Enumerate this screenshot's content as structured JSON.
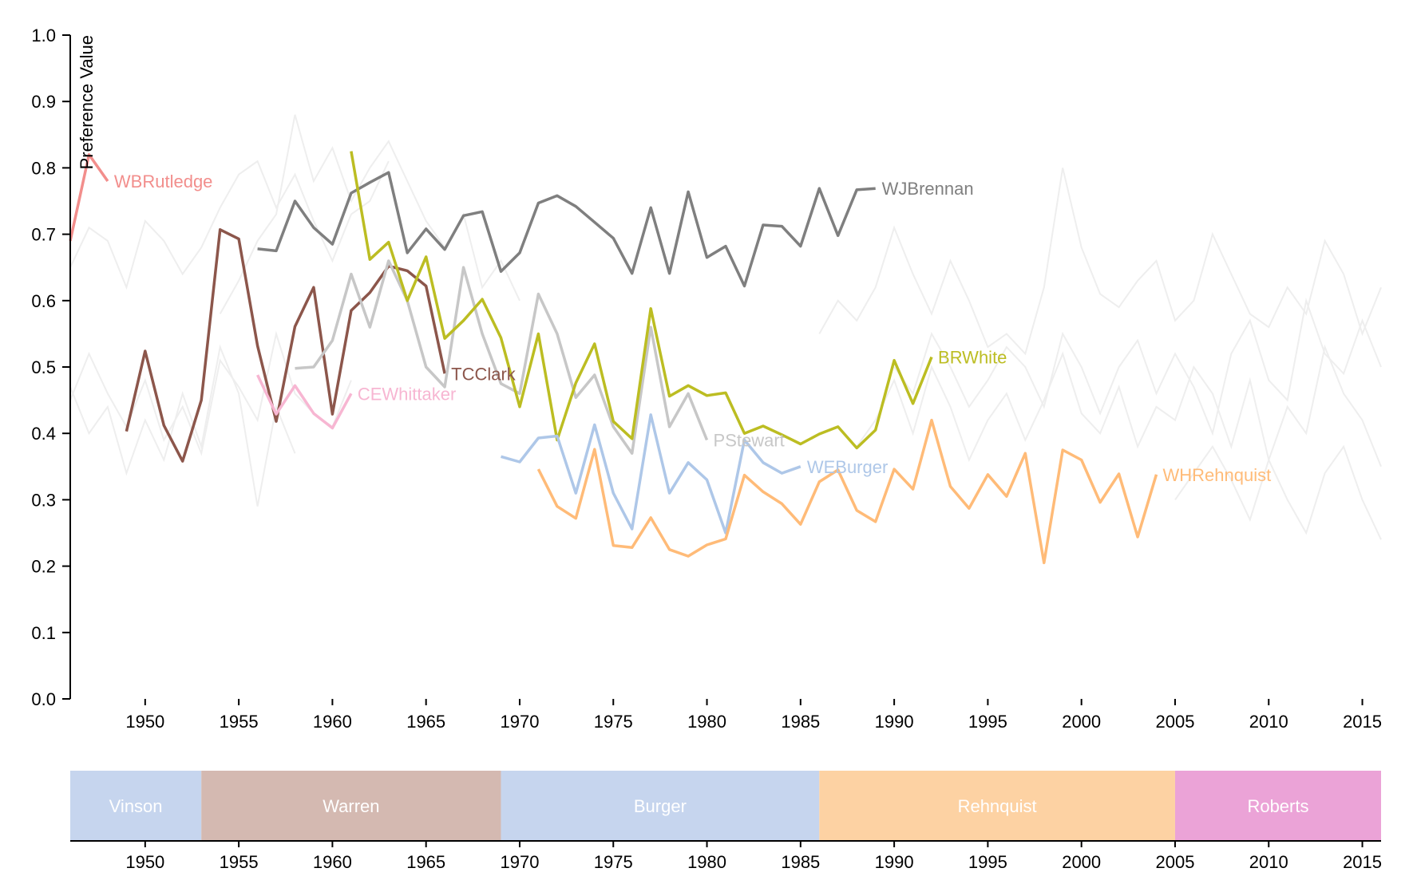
{
  "chart_data": {
    "type": "line",
    "title": "",
    "xlabel": "",
    "ylabel": "Preference Value",
    "xlim": [
      1946,
      2016
    ],
    "ylim": [
      0,
      1
    ],
    "y_ticks": [
      "0.0",
      "0.1",
      "0.2",
      "0.3",
      "0.4",
      "0.5",
      "0.6",
      "0.7",
      "0.8",
      "0.9",
      "1.0"
    ],
    "x_ticks": [
      "1950",
      "1955",
      "1960",
      "1965",
      "1970",
      "1975",
      "1980",
      "1985",
      "1990",
      "1995",
      "2000",
      "2005",
      "2010",
      "2015"
    ],
    "background_series_color": "#eeeeee",
    "series": [
      {
        "name": "WBRutledge",
        "color": "#f28e8c",
        "x": [
          1946,
          1947,
          1948
        ],
        "y": [
          0.69,
          0.82,
          0.78
        ]
      },
      {
        "name": "WJBrennan",
        "color": "#7f7f7f",
        "x": [
          1956,
          1957,
          1958,
          1959,
          1960,
          1961,
          1962,
          1963,
          1964,
          1965,
          1966,
          1967,
          1968,
          1969,
          1970,
          1971,
          1972,
          1973,
          1974,
          1975,
          1976,
          1977,
          1978,
          1979,
          1980,
          1981,
          1982,
          1983,
          1984,
          1985,
          1986,
          1987,
          1988,
          1989
        ],
        "y": [
          0.678,
          0.675,
          0.75,
          0.71,
          0.685,
          0.762,
          0.778,
          0.793,
          0.672,
          0.708,
          0.677,
          0.728,
          0.734,
          0.644,
          0.672,
          0.747,
          0.758,
          0.742,
          0.718,
          0.694,
          0.641,
          0.74,
          0.641,
          0.764,
          0.665,
          0.682,
          0.622,
          0.714,
          0.712,
          0.682,
          0.769,
          0.698,
          0.767,
          0.769
        ]
      },
      {
        "name": "TCClark",
        "color": "#8c564b",
        "x": [
          1949,
          1950,
          1951,
          1952,
          1953,
          1954,
          1955,
          1956,
          1957,
          1958,
          1959,
          1960,
          1961,
          1962,
          1963,
          1964,
          1965,
          1966
        ],
        "y": [
          0.403,
          0.524,
          0.412,
          0.358,
          0.45,
          0.707,
          0.693,
          0.532,
          0.418,
          0.561,
          0.62,
          0.429,
          0.585,
          0.612,
          0.652,
          0.645,
          0.622,
          0.49
        ]
      },
      {
        "name": "CEWhittaker",
        "color": "#f7b6d2",
        "x": [
          1956,
          1957,
          1958,
          1959,
          1960,
          1961
        ],
        "y": [
          0.488,
          0.429,
          0.472,
          0.43,
          0.408,
          0.46
        ]
      },
      {
        "name": "PStewart",
        "color": "#c7c7c7",
        "x": [
          1958,
          1959,
          1960,
          1961,
          1962,
          1963,
          1964,
          1965,
          1966,
          1967,
          1968,
          1969,
          1970,
          1971,
          1972,
          1973,
          1974,
          1975,
          1976,
          1977,
          1978,
          1979,
          1980
        ],
        "y": [
          0.498,
          0.5,
          0.54,
          0.64,
          0.56,
          0.66,
          0.6,
          0.5,
          0.47,
          0.65,
          0.55,
          0.475,
          0.46,
          0.61,
          0.55,
          0.454,
          0.488,
          0.41,
          0.37,
          0.56,
          0.41,
          0.46,
          0.39
        ]
      },
      {
        "name": "BRWhite",
        "color": "#bcbd22",
        "x": [
          1961,
          1962,
          1963,
          1964,
          1965,
          1966,
          1967,
          1968,
          1969,
          1970,
          1971,
          1972,
          1973,
          1974,
          1975,
          1976,
          1977,
          1978,
          1979,
          1980,
          1981,
          1982,
          1983,
          1984,
          1985,
          1986,
          1987,
          1988,
          1989,
          1990,
          1991,
          1992
        ],
        "y": [
          0.825,
          0.662,
          0.688,
          0.6,
          0.666,
          0.543,
          0.57,
          0.602,
          0.544,
          0.44,
          0.55,
          0.39,
          0.476,
          0.535,
          0.418,
          0.392,
          0.588,
          0.456,
          0.472,
          0.457,
          0.461,
          0.4,
          0.411,
          0.398,
          0.384,
          0.399,
          0.41,
          0.378,
          0.405,
          0.51,
          0.445,
          0.515
        ]
      },
      {
        "name": "WEBurger",
        "color": "#aec7e8",
        "x": [
          1969,
          1970,
          1971,
          1972,
          1973,
          1974,
          1975,
          1976,
          1977,
          1978,
          1979,
          1980,
          1981,
          1982,
          1983,
          1984,
          1985
        ],
        "y": [
          0.365,
          0.357,
          0.393,
          0.396,
          0.31,
          0.413,
          0.31,
          0.256,
          0.428,
          0.31,
          0.356,
          0.33,
          0.25,
          0.39,
          0.356,
          0.34,
          0.35
        ]
      },
      {
        "name": "WHRehnquist",
        "color": "#ffbb78",
        "x": [
          1971,
          1972,
          1973,
          1974,
          1975,
          1976,
          1977,
          1978,
          1979,
          1980,
          1981,
          1982,
          1983,
          1984,
          1985,
          1986,
          1987,
          1988,
          1989,
          1990,
          1991,
          1992,
          1993,
          1994,
          1995,
          1996,
          1997,
          1998,
          1999,
          2000,
          2001,
          2002,
          2003,
          2004
        ],
        "y": [
          0.346,
          0.29,
          0.272,
          0.376,
          0.231,
          0.228,
          0.273,
          0.225,
          0.215,
          0.232,
          0.241,
          0.337,
          0.312,
          0.294,
          0.263,
          0.327,
          0.345,
          0.284,
          0.267,
          0.346,
          0.316,
          0.42,
          0.32,
          0.287,
          0.338,
          0.305,
          0.37,
          0.205,
          0.375,
          0.36,
          0.296,
          0.339,
          0.244,
          0.338
        ]
      }
    ],
    "background_series": [
      {
        "x": [
          1946,
          1947,
          1948,
          1949,
          1950,
          1951,
          1952,
          1953,
          1954,
          1955,
          1956,
          1957,
          1958,
          1959,
          1960,
          1961,
          1962,
          1963
        ],
        "y": [
          0.65,
          0.71,
          0.69,
          0.62,
          0.72,
          0.69,
          0.64,
          0.68,
          0.74,
          0.79,
          0.81,
          0.74,
          0.79,
          0.72,
          0.66,
          0.73,
          0.75,
          0.81
        ]
      },
      {
        "x": [
          1946,
          1947,
          1948,
          1949,
          1950,
          1951,
          1952,
          1953,
          1954,
          1955,
          1956,
          1957,
          1958,
          1959,
          1960,
          1961
        ],
        "y": [
          0.45,
          0.52,
          0.46,
          0.41,
          0.48,
          0.39,
          0.44,
          0.37,
          0.51,
          0.47,
          0.42,
          0.55,
          0.46,
          0.43,
          0.41,
          0.48
        ]
      },
      {
        "x": [
          1946,
          1947,
          1948,
          1949,
          1950,
          1951,
          1952,
          1953,
          1954,
          1955,
          1956,
          1957,
          1958
        ],
        "y": [
          0.47,
          0.4,
          0.44,
          0.34,
          0.42,
          0.36,
          0.46,
          0.38,
          0.53,
          0.46,
          0.29,
          0.44,
          0.37
        ]
      },
      {
        "x": [
          1954,
          1955,
          1956,
          1957,
          1958,
          1959,
          1960,
          1961,
          1962,
          1963,
          1964,
          1965,
          1966,
          1967,
          1968,
          1969,
          1970
        ],
        "y": [
          0.58,
          0.63,
          0.69,
          0.73,
          0.88,
          0.78,
          0.83,
          0.75,
          0.8,
          0.84,
          0.78,
          0.72,
          0.68,
          0.73,
          0.62,
          0.66,
          0.6
        ]
      },
      {
        "x": [
          1986,
          1987,
          1988,
          1989,
          1990,
          1991,
          1992,
          1993,
          1994,
          1995,
          1996,
          1997,
          1998,
          1999,
          2000,
          2001,
          2002,
          2003,
          2004,
          2005,
          2006,
          2007,
          2008,
          2009,
          2010,
          2011,
          2012,
          2013,
          2014,
          2015,
          2016
        ],
        "y": [
          0.55,
          0.6,
          0.57,
          0.62,
          0.71,
          0.64,
          0.58,
          0.66,
          0.6,
          0.53,
          0.55,
          0.52,
          0.62,
          0.8,
          0.68,
          0.61,
          0.59,
          0.63,
          0.66,
          0.57,
          0.6,
          0.7,
          0.64,
          0.58,
          0.56,
          0.62,
          0.58,
          0.69,
          0.64,
          0.55,
          0.62
        ]
      },
      {
        "x": [
          1988,
          1989,
          1990,
          1991,
          1992,
          1993,
          1994,
          1995,
          1996,
          1997,
          1998,
          1999,
          2000,
          2001,
          2002,
          2003,
          2004,
          2005,
          2006,
          2007,
          2008,
          2009,
          2010,
          2011,
          2012,
          2013,
          2014,
          2015,
          2016
        ],
        "y": [
          0.38,
          0.42,
          0.48,
          0.4,
          0.5,
          0.44,
          0.36,
          0.42,
          0.46,
          0.39,
          0.45,
          0.52,
          0.43,
          0.4,
          0.47,
          0.38,
          0.44,
          0.42,
          0.5,
          0.46,
          0.38,
          0.48,
          0.36,
          0.44,
          0.4,
          0.53,
          0.46,
          0.42,
          0.35
        ]
      },
      {
        "x": [
          1990,
          1991,
          1992,
          1993,
          1994,
          1995,
          1996,
          1997,
          1998,
          1999,
          2000,
          2001,
          2002,
          2003,
          2004,
          2005,
          2006,
          2007,
          2008,
          2009,
          2010,
          2011,
          2012,
          2013,
          2014,
          2015,
          2016
        ],
        "y": [
          0.5,
          0.46,
          0.55,
          0.5,
          0.44,
          0.48,
          0.53,
          0.5,
          0.44,
          0.55,
          0.5,
          0.43,
          0.5,
          0.54,
          0.46,
          0.52,
          0.47,
          0.4,
          0.52,
          0.57,
          0.48,
          0.45,
          0.6,
          0.52,
          0.49,
          0.57,
          0.5
        ]
      },
      {
        "x": [
          2005,
          2006,
          2007,
          2008,
          2009,
          2010,
          2011,
          2012,
          2013,
          2014,
          2015,
          2016
        ],
        "y": [
          0.3,
          0.34,
          0.38,
          0.33,
          0.27,
          0.36,
          0.3,
          0.25,
          0.34,
          0.38,
          0.3,
          0.24
        ]
      }
    ],
    "eras": [
      {
        "name": "Vinson",
        "start": 1946,
        "end": 1953,
        "color": "#c6d5ee"
      },
      {
        "name": "Warren",
        "start": 1953,
        "end": 1969,
        "color": "#d4b9b1"
      },
      {
        "name": "Burger",
        "start": 1969,
        "end": 1986,
        "color": "#c6d5ee"
      },
      {
        "name": "Rehnquist",
        "start": 1986,
        "end": 2005,
        "color": "#fdd2a3"
      },
      {
        "name": "Roberts",
        "start": 2005,
        "end": 2016,
        "color": "#eba3d7"
      }
    ]
  }
}
